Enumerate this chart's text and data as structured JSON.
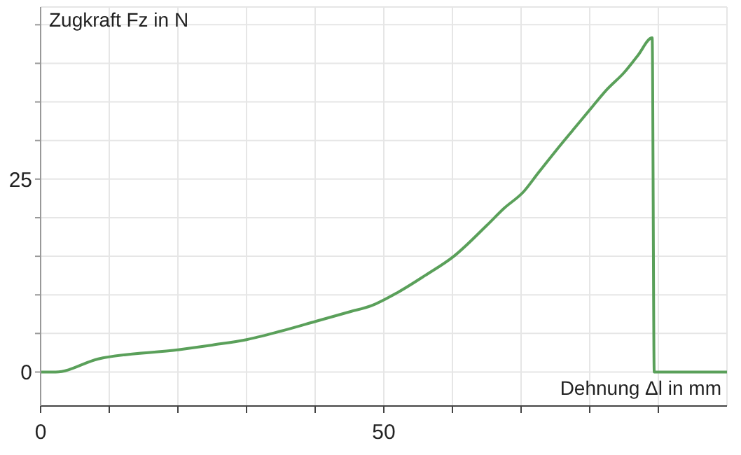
{
  "chart_data": {
    "type": "line",
    "xlabel": "Dehnung Δl in mm",
    "ylabel": "Zugkraft Fz in N",
    "x": [
      0,
      2.2,
      8.4,
      20.2,
      25,
      30,
      35,
      40.2,
      45,
      48.2,
      52,
      56,
      60.2,
      65,
      67.5,
      70.4,
      72.5,
      75,
      77.5,
      80.4,
      82.5,
      85,
      87,
      89.1,
      89.4,
      100
    ],
    "series": [
      {
        "color": "#5aa05a",
        "values": [
          0,
          0,
          1.7,
          2.9,
          3.5,
          4.2,
          5.3,
          6.6,
          7.8,
          8.6,
          10.3,
          12.5,
          15,
          19,
          21.2,
          23.4,
          25.8,
          28.6,
          31.3,
          34.4,
          36.6,
          38.8,
          41,
          43.3,
          0,
          0
        ]
      }
    ],
    "xlim": [
      0,
      100
    ],
    "xticks": [
      0,
      {
        "value": 10,
        "label": null
      },
      {
        "value": 20,
        "label": null
      },
      {
        "value": 30,
        "label": null
      },
      {
        "value": 40,
        "label": null
      },
      50,
      {
        "value": 60,
        "label": null
      },
      {
        "value": 70,
        "label": null
      },
      {
        "value": 80,
        "label": null
      },
      {
        "value": 90,
        "label": null
      }
    ],
    "ylim": [
      -4.4,
      47.3
    ],
    "yticks": [
      0,
      {
        "value": 5,
        "label": null
      },
      {
        "value": 10,
        "label": null
      },
      {
        "value": 15,
        "label": null
      },
      {
        "value": 20,
        "label": null
      },
      25,
      {
        "value": 30,
        "label": null
      },
      {
        "value": 35,
        "label": null
      },
      {
        "value": 40,
        "label": null
      },
      {
        "value": 45,
        "label": null
      }
    ],
    "grid": true,
    "marker": "none",
    "line_style": "solid"
  }
}
